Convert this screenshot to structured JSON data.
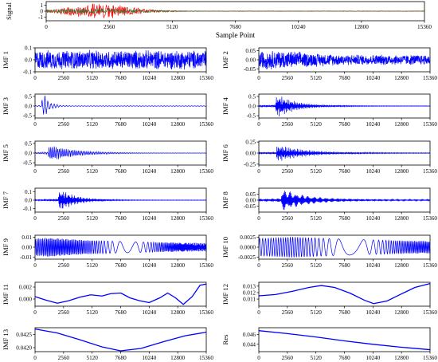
{
  "chart_data": [
    {
      "id": "signal",
      "type": "line",
      "ylabel": "Signal",
      "xlabel": "Sample Point",
      "xlim": [
        0,
        15360
      ],
      "xticks": [
        0,
        2560,
        5120,
        7680,
        10240,
        12800,
        15360
      ],
      "ylim": [
        -1.6,
        1.6
      ],
      "yticks": [
        {
          "v": 1,
          "label": "1"
        },
        {
          "v": 0,
          "label": "0"
        },
        {
          "v": -1,
          "label": "-1"
        }
      ],
      "series": [
        {
          "color": "#ff0000",
          "kind": "signal",
          "amp": 1.25,
          "peak": 2200,
          "decay": 1600,
          "floor": 0.04,
          "freq": 4.0
        },
        {
          "color": "#3a7a3a",
          "kind": "signal",
          "amp": 0.45,
          "peak": 2000,
          "decay": 2600,
          "floor": 0.03,
          "freq": 3.1
        }
      ]
    },
    {
      "id": "imf1",
      "type": "line",
      "ylabel": "IMF 1",
      "xlim": [
        0,
        15360
      ],
      "xticks": [
        0,
        2560,
        5120,
        7680,
        10240,
        12800,
        15360
      ],
      "ylim": [
        -0.1,
        0.1
      ],
      "yticks": [
        {
          "v": 0.1,
          "label": "0.1"
        },
        {
          "v": 0.0,
          "label": "0.0"
        },
        {
          "v": -0.1,
          "label": "-0.1"
        }
      ],
      "series": [
        {
          "color": "#0000ff",
          "kind": "noise",
          "amp": 0.085,
          "peak": 0,
          "decay": 0,
          "floor": 1,
          "freq": 0
        }
      ]
    },
    {
      "id": "imf2",
      "type": "line",
      "ylabel": "IMF 2",
      "xlim": [
        0,
        15360
      ],
      "xticks": [
        0,
        2560,
        5120,
        7680,
        10240,
        12800,
        15360
      ],
      "ylim": [
        -0.065,
        0.065
      ],
      "yticks": [
        {
          "v": 0.05,
          "label": "0.05"
        },
        {
          "v": 0.0,
          "label": "0.00"
        },
        {
          "v": -0.05,
          "label": "-0.05"
        }
      ],
      "series": [
        {
          "color": "#0000ff",
          "kind": "noise",
          "amp": 0.055,
          "peak": 1100,
          "decay": 4000,
          "floor": 0.55,
          "freq": 0
        }
      ]
    },
    {
      "id": "imf3",
      "type": "line",
      "ylabel": "IMF 3",
      "xlim": [
        0,
        15360
      ],
      "xticks": [
        0,
        2560,
        5120,
        7680,
        10240,
        12800,
        15360
      ],
      "ylim": [
        -0.62,
        0.62
      ],
      "yticks": [
        {
          "v": 0.5,
          "label": "0.5"
        },
        {
          "v": 0.0,
          "label": "0.0"
        },
        {
          "v": -0.5,
          "label": "-0.5"
        }
      ],
      "series": [
        {
          "color": "#0000ff",
          "kind": "burst",
          "amp": 0.55,
          "peak": 900,
          "decay": 500,
          "floor": 0.03,
          "freq": 2.6
        }
      ]
    },
    {
      "id": "imf4",
      "type": "line",
      "ylabel": "IMF 4",
      "xlim": [
        0,
        15360
      ],
      "xticks": [
        0,
        2560,
        5120,
        7680,
        10240,
        12800,
        15360
      ],
      "ylim": [
        -0.62,
        0.62
      ],
      "yticks": [
        {
          "v": 0.5,
          "label": "0.5"
        },
        {
          "v": 0.0,
          "label": "0.0"
        },
        {
          "v": -0.5,
          "label": "-0.5"
        }
      ],
      "series": [
        {
          "color": "#0000ff",
          "kind": "burst",
          "amp": 0.55,
          "peak": 1800,
          "decay": 1800,
          "floor": 0.02,
          "freq": 1.6
        }
      ]
    },
    {
      "id": "imf5",
      "type": "line",
      "ylabel": "IMF 5",
      "xlim": [
        0,
        15360
      ],
      "xticks": [
        0,
        2560,
        5120,
        7680,
        10240,
        12800,
        15360
      ],
      "ylim": [
        -0.62,
        0.62
      ],
      "yticks": [
        {
          "v": 0.5,
          "label": "0.5"
        },
        {
          "v": 0.0,
          "label": "0.0"
        },
        {
          "v": -0.5,
          "label": "-0.5"
        }
      ],
      "series": [
        {
          "color": "#0000ff",
          "kind": "burst",
          "amp": 0.4,
          "peak": 1500,
          "decay": 2300,
          "floor": 0.02,
          "freq": 0.9
        }
      ]
    },
    {
      "id": "imf6",
      "type": "line",
      "ylabel": "IMF 6",
      "xlim": [
        0,
        15360
      ],
      "xticks": [
        0,
        2560,
        5120,
        7680,
        10240,
        12800,
        15360
      ],
      "ylim": [
        -0.27,
        0.27
      ],
      "yticks": [
        {
          "v": 0.25,
          "label": "0.25"
        },
        {
          "v": 0.0,
          "label": "0.00"
        },
        {
          "v": -0.25,
          "label": "-0.25"
        }
      ],
      "series": [
        {
          "color": "#0000ff",
          "kind": "burst",
          "amp": 0.18,
          "peak": 1900,
          "decay": 2600,
          "floor": 0.03,
          "freq": 0.45
        }
      ]
    },
    {
      "id": "imf7",
      "type": "line",
      "ylabel": "IMF 7",
      "xlim": [
        0,
        15360
      ],
      "xticks": [
        0,
        2560,
        5120,
        7680,
        10240,
        12800,
        15360
      ],
      "ylim": [
        -0.14,
        0.14
      ],
      "yticks": [
        {
          "v": 0.1,
          "label": "0.1"
        },
        {
          "v": 0.0,
          "label": "0.0"
        },
        {
          "v": -0.1,
          "label": "-0.1"
        }
      ],
      "series": [
        {
          "color": "#0000ff",
          "kind": "burst",
          "amp": 0.12,
          "peak": 2400,
          "decay": 1500,
          "floor": 0.02,
          "freq": 0.18
        }
      ]
    },
    {
      "id": "imf8",
      "type": "line",
      "ylabel": "IMF 8",
      "xlim": [
        0,
        15360
      ],
      "xticks": [
        0,
        2560,
        5120,
        7680,
        10240,
        12800,
        15360
      ],
      "ylim": [
        -0.1,
        0.1
      ],
      "yticks": [
        {
          "v": 0.05,
          "label": "0.05"
        },
        {
          "v": 0.0,
          "label": "0.00"
        },
        {
          "v": -0.05,
          "label": "-0.05"
        }
      ],
      "series": [
        {
          "color": "#0000ff",
          "kind": "burst",
          "amp": 0.085,
          "peak": 2300,
          "decay": 2200,
          "floor": 0.06,
          "freq": 0.09
        }
      ]
    },
    {
      "id": "imf9",
      "type": "line",
      "ylabel": "IMF 9",
      "xlim": [
        0,
        15360
      ],
      "xticks": [
        0,
        2560,
        5120,
        7680,
        10240,
        12800,
        15360
      ],
      "ylim": [
        -0.012,
        0.012
      ],
      "yticks": [
        {
          "v": 0.01,
          "label": "0.01"
        },
        {
          "v": 0.0,
          "label": "0.00"
        },
        {
          "v": -0.01,
          "label": "-0.01"
        }
      ],
      "series": [
        {
          "color": "#0000ff",
          "kind": "osc",
          "amp": 0.0095,
          "peak": 1200,
          "decay": 7000,
          "floor": 0.35,
          "freq": 0.045
        }
      ]
    },
    {
      "id": "imf10",
      "type": "line",
      "ylabel": "IMF 10",
      "xlim": [
        0,
        15360
      ],
      "xticks": [
        0,
        2560,
        5120,
        7680,
        10240,
        12800,
        15360
      ],
      "ylim": [
        -0.003,
        0.003
      ],
      "yticks": [
        {
          "v": 0.0025,
          "label": "0.0025"
        },
        {
          "v": 0.0,
          "label": "0.0000"
        },
        {
          "v": -0.0025,
          "label": "-0.0025"
        }
      ],
      "series": [
        {
          "color": "#0000ff",
          "kind": "osc",
          "amp": 0.0026,
          "peak": 3000,
          "decay": 9000,
          "floor": 0.45,
          "freq": 0.022
        }
      ]
    },
    {
      "id": "imf11",
      "type": "line",
      "ylabel": "IMF 11",
      "xlim": [
        0,
        15360
      ],
      "xticks": [
        0,
        2560,
        5120,
        7680,
        10240,
        12800,
        15360
      ],
      "ylim": [
        -0.0012,
        0.0028
      ],
      "yticks": [
        {
          "v": 0.002,
          "label": "0.002"
        },
        {
          "v": 0.0,
          "label": "0.000"
        }
      ],
      "series": [
        {
          "color": "#0000ff",
          "kind": "points",
          "points": [
            [
              0,
              0.0004
            ],
            [
              1000,
              -0.0002
            ],
            [
              2000,
              -0.0007
            ],
            [
              3000,
              -0.0003
            ],
            [
              4000,
              0.0003
            ],
            [
              5000,
              0.0007
            ],
            [
              6000,
              0.0005
            ],
            [
              6800,
              0.0009
            ],
            [
              7700,
              0.001
            ],
            [
              8500,
              0.0002
            ],
            [
              9400,
              -0.0003
            ],
            [
              10240,
              -0.0006
            ],
            [
              11200,
              0.0002
            ],
            [
              11900,
              0.001
            ],
            [
              12600,
              0.0002
            ],
            [
              13300,
              -0.0009
            ],
            [
              14100,
              0.0004
            ],
            [
              14800,
              0.0023
            ],
            [
              15360,
              0.0025
            ]
          ]
        }
      ]
    },
    {
      "id": "imf12",
      "type": "line",
      "ylabel": "IMF 12",
      "xlim": [
        0,
        15360
      ],
      "xticks": [
        0,
        2560,
        5120,
        7680,
        10240,
        12800,
        15360
      ],
      "ylim": [
        0.0099,
        0.0136
      ],
      "yticks": [
        {
          "v": 0.013,
          "label": "0.013"
        },
        {
          "v": 0.012,
          "label": "0.012"
        },
        {
          "v": 0.011,
          "label": "0.011"
        }
      ],
      "series": [
        {
          "color": "#0000ff",
          "kind": "points",
          "points": [
            [
              0,
              0.0115
            ],
            [
              1500,
              0.0117
            ],
            [
              3000,
              0.0122
            ],
            [
              4500,
              0.0128
            ],
            [
              5600,
              0.0131
            ],
            [
              6800,
              0.0128
            ],
            [
              8200,
              0.0119
            ],
            [
              9500,
              0.0108
            ],
            [
              10300,
              0.0103
            ],
            [
              11500,
              0.0107
            ],
            [
              12800,
              0.0118
            ],
            [
              14000,
              0.0128
            ],
            [
              15360,
              0.0134
            ]
          ]
        }
      ]
    },
    {
      "id": "imf13",
      "type": "line",
      "ylabel": "IMF 13",
      "xlim": [
        0,
        15360
      ],
      "xticks": [
        0,
        2560,
        5120,
        7680,
        10240,
        12800,
        15360
      ],
      "ylim": [
        0.04185,
        0.04275
      ],
      "yticks": [
        {
          "v": 0.0425,
          "label": "0.0425"
        },
        {
          "v": 0.042,
          "label": "0.0420"
        }
      ],
      "series": [
        {
          "color": "#0000ff",
          "kind": "points",
          "points": [
            [
              0,
              0.0427
            ],
            [
              2000,
              0.04255
            ],
            [
              4000,
              0.0423
            ],
            [
              6000,
              0.04203
            ],
            [
              7680,
              0.04188
            ],
            [
              9500,
              0.04197
            ],
            [
              11500,
              0.04222
            ],
            [
              13500,
              0.04245
            ],
            [
              15360,
              0.04258
            ]
          ]
        }
      ]
    },
    {
      "id": "res",
      "type": "line",
      "ylabel": "Res",
      "xlim": [
        0,
        15360
      ],
      "xticks": [
        0,
        2560,
        5120,
        7680,
        10240,
        12800,
        15360
      ],
      "ylim": [
        0.0425,
        0.0474
      ],
      "yticks": [
        {
          "v": 0.046,
          "label": "0.046"
        },
        {
          "v": 0.044,
          "label": "0.044"
        }
      ],
      "series": [
        {
          "color": "#0000ff",
          "kind": "points",
          "points": [
            [
              0,
              0.0468
            ],
            [
              2560,
              0.0462
            ],
            [
              5120,
              0.0455
            ],
            [
              7680,
              0.0447
            ],
            [
              10240,
              0.044
            ],
            [
              12800,
              0.0434
            ],
            [
              15360,
              0.0429
            ]
          ]
        }
      ]
    }
  ]
}
